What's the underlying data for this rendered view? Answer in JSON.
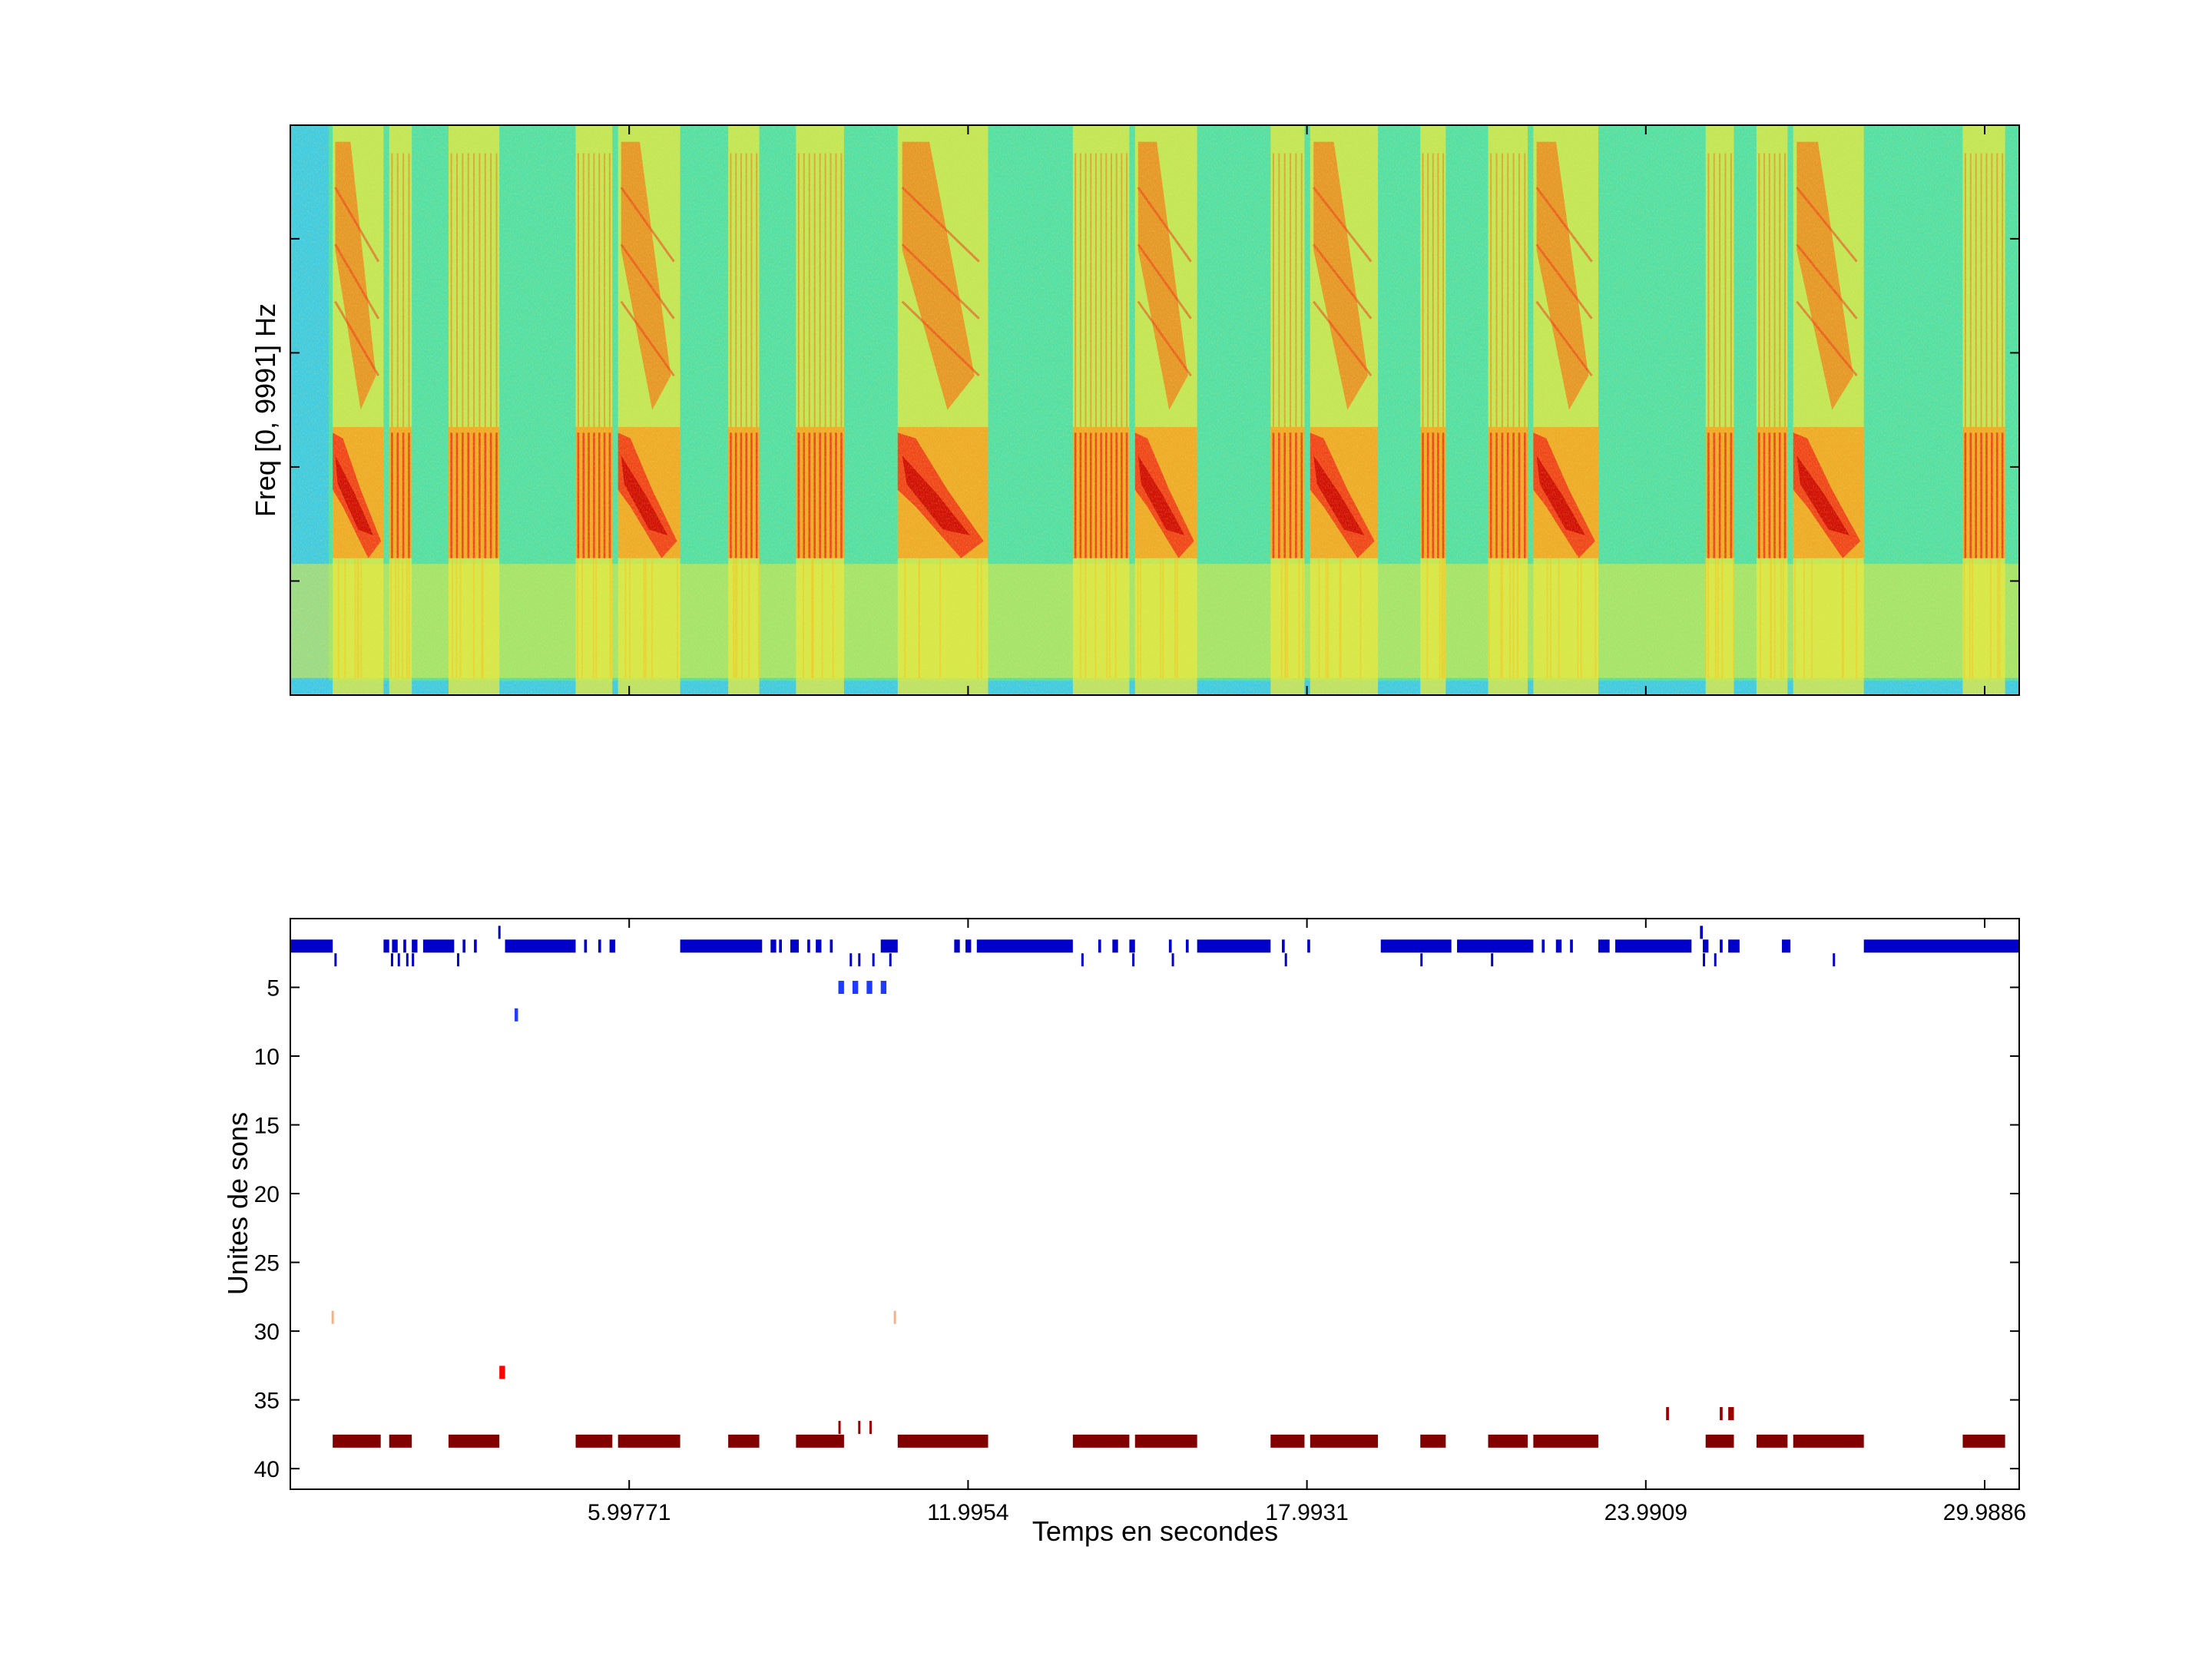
{
  "figure": {
    "background": "#ffffff",
    "axes_color": "#000000"
  },
  "chart_data": [
    {
      "type": "heatmap",
      "title": "",
      "xlabel": "",
      "ylabel": "Freq [0, 9991] Hz",
      "colormap": "jet",
      "x_range": [
        0,
        30.6
      ],
      "y_range": [
        0,
        9991
      ],
      "background_color": "#52dfa6",
      "noise_color": "#3cc8ec",
      "low_band_color": "#e8e83c",
      "strong_color": "#ee3a1a",
      "peak_color": "#c80000",
      "syllables": [
        {
          "kind": "chirp",
          "start": 0.75,
          "end": 1.65
        },
        {
          "kind": "trill",
          "start": 1.75,
          "end": 2.15
        },
        {
          "kind": "trill",
          "start": 2.8,
          "end": 3.7
        },
        {
          "kind": "trill",
          "start": 5.05,
          "end": 5.7
        },
        {
          "kind": "chirp",
          "start": 5.8,
          "end": 6.9
        },
        {
          "kind": "trill",
          "start": 7.75,
          "end": 8.3
        },
        {
          "kind": "trill",
          "start": 8.95,
          "end": 9.8
        },
        {
          "kind": "chirp",
          "start": 10.75,
          "end": 12.35
        },
        {
          "kind": "trill",
          "start": 13.85,
          "end": 14.85
        },
        {
          "kind": "chirp",
          "start": 14.95,
          "end": 16.05
        },
        {
          "kind": "trill",
          "start": 17.35,
          "end": 17.95
        },
        {
          "kind": "chirp",
          "start": 18.05,
          "end": 19.25
        },
        {
          "kind": "trill",
          "start": 20.0,
          "end": 20.45
        },
        {
          "kind": "trill",
          "start": 21.2,
          "end": 21.9
        },
        {
          "kind": "chirp",
          "start": 22.0,
          "end": 23.15
        },
        {
          "kind": "trill",
          "start": 25.05,
          "end": 25.55
        },
        {
          "kind": "trill",
          "start": 25.95,
          "end": 26.5
        },
        {
          "kind": "chirp",
          "start": 26.6,
          "end": 27.85
        },
        {
          "kind": "trill",
          "start": 29.6,
          "end": 30.35
        }
      ]
    },
    {
      "type": "scatter",
      "title": "",
      "xlabel": "Temps en secondes",
      "ylabel": "Unites de sons",
      "xlim": [
        0,
        30.6
      ],
      "ylim": [
        0,
        41.5
      ],
      "y_reversed": true,
      "grid": false,
      "xticks": [
        {
          "value": 5.99771,
          "label": "5.99771"
        },
        {
          "value": 11.9954,
          "label": "11.9954"
        },
        {
          "value": 17.9931,
          "label": "17.9931"
        },
        {
          "value": 23.9909,
          "label": "23.9909"
        },
        {
          "value": 29.9886,
          "label": "29.9886"
        }
      ],
      "yticks": [
        {
          "value": 5,
          "label": "5"
        },
        {
          "value": 10,
          "label": "10"
        },
        {
          "value": 15,
          "label": "15"
        },
        {
          "value": 20,
          "label": "20"
        },
        {
          "value": 25,
          "label": "25"
        },
        {
          "value": 30,
          "label": "30"
        },
        {
          "value": 35,
          "label": "35"
        },
        {
          "value": 40,
          "label": "40"
        }
      ],
      "events": [
        {
          "unit": 2,
          "color": "#0000c8",
          "intervals": [
            [
              0,
              0.75
            ],
            [
              1.65,
              1.75
            ],
            [
              1.8,
              1.9
            ],
            [
              2.0,
              2.05
            ],
            [
              2.15,
              2.25
            ],
            [
              2.35,
              2.9
            ],
            [
              3.05,
              3.1
            ],
            [
              3.25,
              3.3
            ],
            [
              3.8,
              5.05
            ],
            [
              5.2,
              5.25
            ],
            [
              5.45,
              5.5
            ],
            [
              5.65,
              5.75
            ],
            [
              6.9,
              8.35
            ],
            [
              8.5,
              8.6
            ],
            [
              8.65,
              8.7
            ],
            [
              8.85,
              9.0
            ],
            [
              9.15,
              9.2
            ],
            [
              9.3,
              9.4
            ],
            [
              9.55,
              9.6
            ],
            [
              10.45,
              10.75
            ],
            [
              11.75,
              11.85
            ],
            [
              11.95,
              12.05
            ],
            [
              12.15,
              13.85
            ],
            [
              14.3,
              14.35
            ],
            [
              14.55,
              14.65
            ],
            [
              14.85,
              14.95
            ],
            [
              15.55,
              15.6
            ],
            [
              15.85,
              15.9
            ],
            [
              16.05,
              17.35
            ],
            [
              17.55,
              17.6
            ],
            [
              18.0,
              18.05
            ],
            [
              19.3,
              20.55
            ],
            [
              20.65,
              22.0
            ],
            [
              22.15,
              22.2
            ],
            [
              22.4,
              22.5
            ],
            [
              22.65,
              22.7
            ],
            [
              23.15,
              23.35
            ],
            [
              23.45,
              24.8
            ],
            [
              25.0,
              25.1
            ],
            [
              25.3,
              25.35
            ],
            [
              25.45,
              25.65
            ],
            [
              26.4,
              26.55
            ],
            [
              27.85,
              30.6
            ]
          ]
        },
        {
          "unit": 1,
          "color": "#0000c8",
          "intervals": [
            [
              3.68,
              3.72
            ],
            [
              24.95,
              25.0
            ]
          ]
        },
        {
          "unit": 3,
          "color": "#0000c8",
          "intervals": [
            [
              0.78,
              0.82
            ],
            [
              1.78,
              1.82
            ],
            [
              1.9,
              1.94
            ],
            [
              2.05,
              2.09
            ],
            [
              2.15,
              2.19
            ],
            [
              2.95,
              2.99
            ],
            [
              9.9,
              9.94
            ],
            [
              10.05,
              10.09
            ],
            [
              10.3,
              10.34
            ],
            [
              10.6,
              10.64
            ],
            [
              14.0,
              14.04
            ],
            [
              14.9,
              14.94
            ],
            [
              15.6,
              15.64
            ],
            [
              17.6,
              17.64
            ],
            [
              20.0,
              20.04
            ],
            [
              21.25,
              21.29
            ],
            [
              25.0,
              25.04
            ],
            [
              25.2,
              25.24
            ],
            [
              27.3,
              27.34
            ]
          ]
        },
        {
          "unit": 5,
          "color": "#1e3cff",
          "intervals": [
            [
              9.7,
              9.8
            ],
            [
              9.95,
              10.05
            ],
            [
              10.2,
              10.3
            ],
            [
              10.45,
              10.55
            ]
          ]
        },
        {
          "unit": 7,
          "color": "#1e3cff",
          "intervals": [
            [
              3.97,
              4.03
            ]
          ]
        },
        {
          "unit": 29,
          "color": "#f0b48c",
          "intervals": [
            [
              0.73,
              0.77
            ],
            [
              10.68,
              10.72
            ]
          ]
        },
        {
          "unit": 33,
          "color": "#ff0000",
          "intervals": [
            [
              3.7,
              3.8
            ]
          ]
        },
        {
          "unit": 36,
          "color": "#9b0000",
          "intervals": [
            [
              24.35,
              24.4
            ],
            [
              25.3,
              25.35
            ],
            [
              25.45,
              25.55
            ]
          ]
        },
        {
          "unit": 37,
          "color": "#9b0000",
          "intervals": [
            [
              9.7,
              9.74
            ],
            [
              10.05,
              10.09
            ],
            [
              10.25,
              10.29
            ]
          ]
        },
        {
          "unit": 38,
          "color": "#800000",
          "intervals": [
            [
              0.75,
              1.6
            ],
            [
              1.75,
              2.15
            ],
            [
              2.8,
              3.7
            ],
            [
              5.05,
              5.7
            ],
            [
              5.8,
              6.9
            ],
            [
              7.75,
              8.3
            ],
            [
              8.95,
              9.8
            ],
            [
              10.75,
              12.35
            ],
            [
              13.85,
              14.85
            ],
            [
              14.95,
              16.05
            ],
            [
              17.35,
              17.95
            ],
            [
              18.05,
              19.25
            ],
            [
              20.0,
              20.45
            ],
            [
              21.2,
              21.9
            ],
            [
              22.0,
              23.15
            ],
            [
              25.05,
              25.55
            ],
            [
              25.95,
              26.5
            ],
            [
              26.6,
              27.85
            ],
            [
              29.6,
              30.35
            ]
          ]
        }
      ]
    }
  ]
}
